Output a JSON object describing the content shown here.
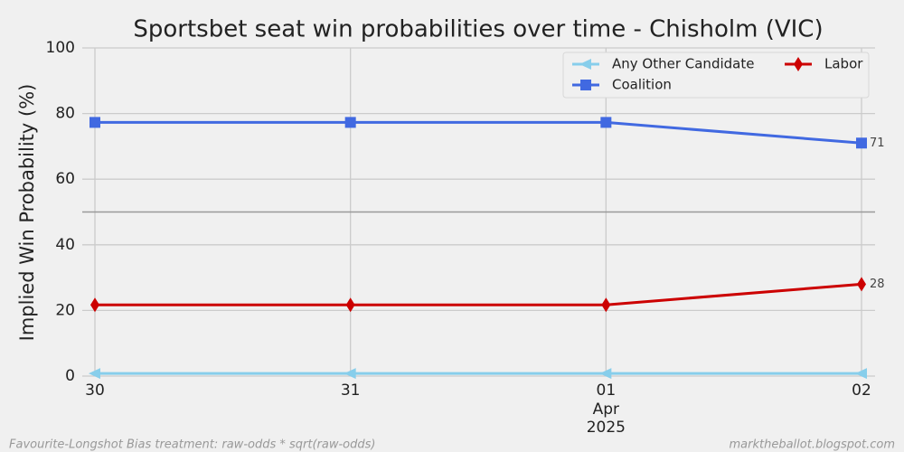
{
  "chart_data": {
    "type": "line",
    "title": "Sportsbet seat win probabilities over time - Chisholm (VIC)",
    "y_label": "Implied Win Probability (%)",
    "categories": [
      "30",
      "31",
      "01",
      "02"
    ],
    "month_label": "Apr",
    "year_label": "2025",
    "series": [
      {
        "name": "Any Other Candidate",
        "color": "#87ceeb",
        "marker": "triangle-left",
        "values": [
          0.8,
          0.8,
          0.8,
          0.8
        ]
      },
      {
        "name": "Coalition",
        "color": "#4169e1",
        "marker": "square",
        "values": [
          77.3,
          77.3,
          77.3,
          71
        ]
      },
      {
        "name": "Labor",
        "color": "#cc0000",
        "marker": "diamond",
        "values": [
          21.7,
          21.7,
          21.7,
          28
        ]
      }
    ],
    "label_last": true,
    "ylim": [
      0,
      100
    ],
    "yticks": [
      0,
      20,
      40,
      60,
      80,
      100
    ],
    "grid": true,
    "hline": 50,
    "legend": "upper right",
    "footer_left": "Favourite-Longshot Bias treatment: raw-odds * sqrt(raw-odds)",
    "footer_right": "marktheballot.blogspot.com"
  }
}
